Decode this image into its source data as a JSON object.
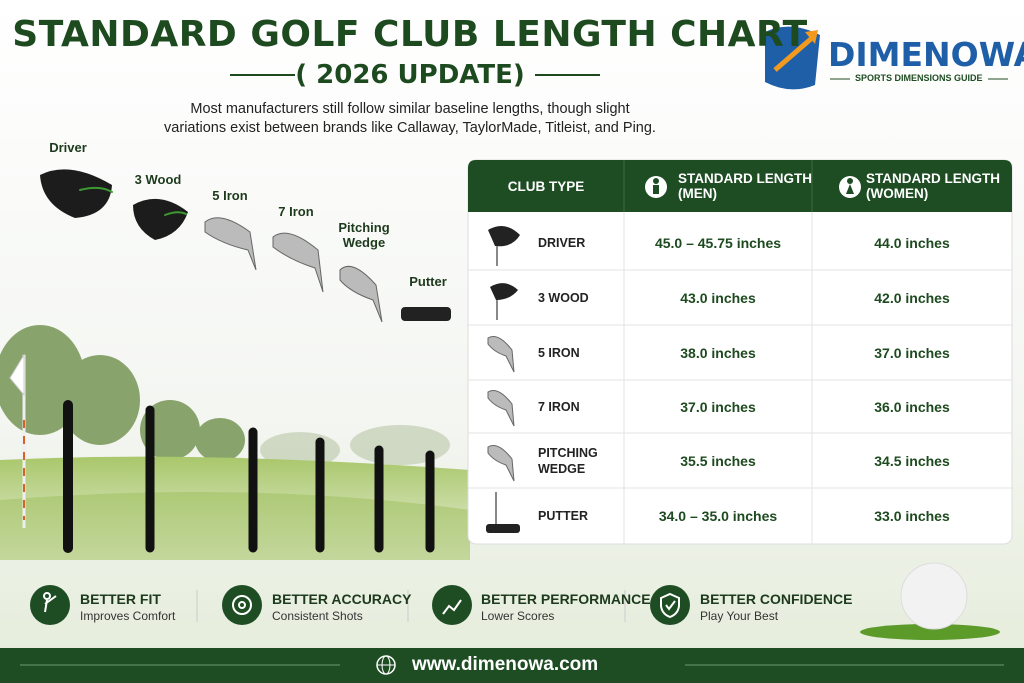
{
  "header": {
    "title": "STANDARD GOLF CLUB LENGTH CHART",
    "subtitle": "( 2026 UPDATE)",
    "intro": [
      "Most manufacturers still follow similar baseline lengths, though slight",
      "variations exist between brands like Callaway, TaylorMade, Titleist, and Ping."
    ]
  },
  "logo": {
    "name": "DIMENOWA",
    "tagline": "SPORTS DIMENSIONS GUIDE"
  },
  "clubs": [
    "Driver",
    "3 Wood",
    "5 Iron",
    "7 Iron",
    "Pitching Wedge",
    "Putter"
  ],
  "table": {
    "columns": [
      {
        "title": "CLUB TYPE"
      },
      {
        "title": "STANDARD LENGTH",
        "subtitle": "(MEN)"
      },
      {
        "title": "STANDARD LENGTH",
        "subtitle": "(WOMEN)"
      }
    ],
    "rows": [
      [
        "DRIVER",
        "45.0 – 45.75 inches",
        "44.0 inches"
      ],
      [
        "3 WOOD",
        "43.0 inches",
        "42.0 inches"
      ],
      [
        "5 IRON",
        "38.0 inches",
        "37.0 inches"
      ],
      [
        "7 IRON",
        "37.0 inches",
        "36.0 inches"
      ],
      [
        "PITCHING WEDGE",
        "35.5 inches",
        "34.5 inches"
      ],
      [
        "PUTTER",
        "34.0 – 35.0 inches",
        "33.0 inches"
      ]
    ]
  },
  "benefits": [
    {
      "title": "BETTER FIT",
      "text": "Improves Comfort"
    },
    {
      "title": "BETTER ACCURACY",
      "text": "Consistent Shots"
    },
    {
      "title": "BETTER PERFORMANCE",
      "text": "Lower Scores"
    },
    {
      "title": "BETTER CONFIDENCE",
      "text": "Play Your Best"
    }
  ],
  "footer": {
    "url": "www.dimenowa.com"
  }
}
